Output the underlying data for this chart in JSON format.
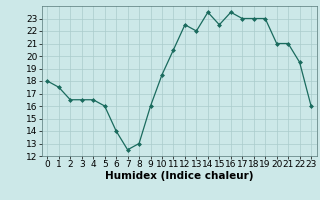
{
  "x": [
    0,
    1,
    2,
    3,
    4,
    5,
    6,
    7,
    8,
    9,
    10,
    11,
    12,
    13,
    14,
    15,
    16,
    17,
    18,
    19,
    20,
    21,
    22,
    23
  ],
  "y": [
    18,
    17.5,
    16.5,
    16.5,
    16.5,
    16,
    14,
    12.5,
    13,
    16,
    18.5,
    20.5,
    22.5,
    22,
    23.5,
    22.5,
    23.5,
    23,
    23,
    23,
    21,
    21,
    19.5,
    16
  ],
  "xlabel": "Humidex (Indice chaleur)",
  "xlim": [
    -0.5,
    23.5
  ],
  "ylim": [
    12,
    24
  ],
  "yticks": [
    12,
    13,
    14,
    15,
    16,
    17,
    18,
    19,
    20,
    21,
    22,
    23
  ],
  "xticks": [
    0,
    1,
    2,
    3,
    4,
    5,
    6,
    7,
    8,
    9,
    10,
    11,
    12,
    13,
    14,
    15,
    16,
    17,
    18,
    19,
    20,
    21,
    22,
    23
  ],
  "line_color": "#1a6b5e",
  "marker_color": "#1a6b5e",
  "bg_color": "#cce8e8",
  "grid_color": "#aacccc",
  "xlabel_fontsize": 7.5,
  "tick_fontsize": 6.5
}
